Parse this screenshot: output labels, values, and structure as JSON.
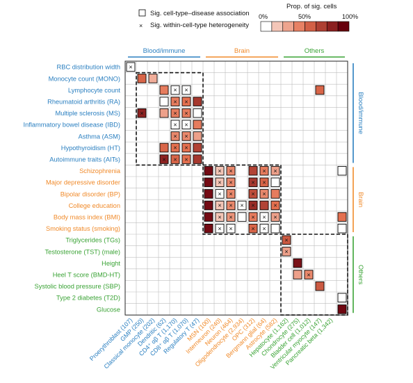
{
  "legend": {
    "assoc_label": "Sig. cell-type–disease association",
    "hetero_label": "Sig. within-cell-type heterogeneity",
    "scale_title": "Prop. of sig. cells",
    "scale_ticks": [
      "0%",
      "50%",
      "100%"
    ]
  },
  "chart_data": {
    "type": "heatmap",
    "title": "",
    "color_scale": {
      "low": "#fbe9e2",
      "mid": "#e4704f",
      "high": "#67000d",
      "range": [
        0,
        1
      ]
    },
    "column_groups": [
      {
        "label": "Blood/immune",
        "color": "#2a7fc0",
        "start": 0,
        "end": 6
      },
      {
        "label": "Brain",
        "color": "#f08a2a",
        "start": 7,
        "end": 13
      },
      {
        "label": "Others",
        "color": "#3aa335",
        "start": 14,
        "end": 19
      }
    ],
    "row_groups": [
      {
        "label": "Blood/immune",
        "color": "#2a7fc0",
        "start": 0,
        "end": 8
      },
      {
        "label": "Brain",
        "color": "#f08a2a",
        "start": 9,
        "end": 14
      },
      {
        "label": "Others",
        "color": "#3aa335",
        "start": 15,
        "end": 21
      }
    ],
    "columns": [
      "Proerythroblast (107)",
      "GMP (250)",
      "Classical monocyte (202)",
      "Dendritic (62)",
      "CD4⁺ αβ T (1,170)",
      "CD8⁺ αβ T (1,070)",
      "Regulatory T (47)",
      "MSN (100)",
      "Interneuron (240)",
      "Neuron (464)",
      "Oligodendrocyte (2,934)",
      "OPC (312)",
      "Bergmann glial (64)",
      "Astrocyte (582)",
      "Hepatocyte (1,162)",
      "Chondrocyte (275)",
      "Bladder cell (1,012)",
      "Ventricular myocyte (147)",
      "Pancreatic beta (1,342)",
      ""
    ],
    "rows": [
      "RBC distribution width",
      "Monocyte count (MONO)",
      "Lymphocyte count",
      "Rheumatoid arthritis (RA)",
      "Multiple sclerosis (MS)",
      "Inflammatory bowel disease (IBD)",
      "Asthma (ASM)",
      "Hypothyroidism (HT)",
      "Autoimmune traits (AITs)",
      "Schizophrenia",
      "Major depressive disorder",
      "Bipolar disorder (BP)",
      "College education",
      "Body mass index (BMI)",
      "Smoking status (smoking)",
      "Triglycerides (TGs)",
      "Testosterone (TST) (male)",
      "Height",
      "Heel T score (BMD-HT)",
      "Systolic blood pressure (SBP)",
      "Type 2 diabetes (T2D)",
      "Glucose"
    ],
    "cells": [
      {
        "r": 0,
        "c": 0,
        "v": 0.0,
        "s": 1,
        "h": 1
      },
      {
        "r": 1,
        "c": 1,
        "v": 0.55,
        "s": 1,
        "h": 0
      },
      {
        "r": 1,
        "c": 2,
        "v": 0.25,
        "s": 1,
        "h": 0
      },
      {
        "r": 2,
        "c": 3,
        "v": 0.45,
        "s": 1,
        "h": 0
      },
      {
        "r": 2,
        "c": 4,
        "v": 0.0,
        "s": 1,
        "h": 1
      },
      {
        "r": 2,
        "c": 5,
        "v": 0.0,
        "s": 1,
        "h": 1
      },
      {
        "r": 2,
        "c": 17,
        "v": 0.55,
        "s": 1,
        "h": 0
      },
      {
        "r": 3,
        "c": 3,
        "v": 0.0,
        "s": 1,
        "h": 0
      },
      {
        "r": 3,
        "c": 4,
        "v": 0.45,
        "s": 1,
        "h": 1
      },
      {
        "r": 3,
        "c": 5,
        "v": 0.5,
        "s": 1,
        "h": 1
      },
      {
        "r": 3,
        "c": 6,
        "v": 0.75,
        "s": 1,
        "h": 0
      },
      {
        "r": 4,
        "c": 1,
        "v": 0.85,
        "s": 1,
        "h": 1
      },
      {
        "r": 4,
        "c": 3,
        "v": 0.3,
        "s": 1,
        "h": 0
      },
      {
        "r": 4,
        "c": 4,
        "v": 0.45,
        "s": 1,
        "h": 1
      },
      {
        "r": 4,
        "c": 5,
        "v": 0.45,
        "s": 1,
        "h": 1
      },
      {
        "r": 4,
        "c": 6,
        "v": 0.0,
        "s": 1,
        "h": 0
      },
      {
        "r": 5,
        "c": 4,
        "v": 0.0,
        "s": 1,
        "h": 1
      },
      {
        "r": 5,
        "c": 5,
        "v": 0.0,
        "s": 1,
        "h": 1
      },
      {
        "r": 5,
        "c": 6,
        "v": 0.45,
        "s": 1,
        "h": 0
      },
      {
        "r": 6,
        "c": 4,
        "v": 0.4,
        "s": 1,
        "h": 1
      },
      {
        "r": 6,
        "c": 5,
        "v": 0.4,
        "s": 1,
        "h": 1
      },
      {
        "r": 6,
        "c": 6,
        "v": 0.3,
        "s": 1,
        "h": 0
      },
      {
        "r": 7,
        "c": 3,
        "v": 0.55,
        "s": 1,
        "h": 0
      },
      {
        "r": 7,
        "c": 4,
        "v": 0.5,
        "s": 1,
        "h": 1
      },
      {
        "r": 7,
        "c": 5,
        "v": 0.5,
        "s": 1,
        "h": 1
      },
      {
        "r": 7,
        "c": 6,
        "v": 0.7,
        "s": 1,
        "h": 0
      },
      {
        "r": 8,
        "c": 3,
        "v": 0.85,
        "s": 1,
        "h": 1
      },
      {
        "r": 8,
        "c": 4,
        "v": 0.55,
        "s": 1,
        "h": 1
      },
      {
        "r": 8,
        "c": 5,
        "v": 0.5,
        "s": 1,
        "h": 1
      },
      {
        "r": 8,
        "c": 6,
        "v": 0.75,
        "s": 1,
        "h": 0
      },
      {
        "r": 9,
        "c": 7,
        "v": 0.95,
        "s": 1,
        "h": 0
      },
      {
        "r": 9,
        "c": 8,
        "v": 0.15,
        "s": 1,
        "h": 1
      },
      {
        "r": 9,
        "c": 9,
        "v": 0.4,
        "s": 1,
        "h": 1
      },
      {
        "r": 9,
        "c": 11,
        "v": 0.7,
        "s": 1,
        "h": 0
      },
      {
        "r": 9,
        "c": 12,
        "v": 0.45,
        "s": 1,
        "h": 1
      },
      {
        "r": 9,
        "c": 13,
        "v": 0.3,
        "s": 1,
        "h": 1
      },
      {
        "r": 9,
        "c": 19,
        "v": 0.0,
        "s": 1,
        "h": 0
      },
      {
        "r": 10,
        "c": 7,
        "v": 0.95,
        "s": 1,
        "h": 0
      },
      {
        "r": 10,
        "c": 8,
        "v": 0.15,
        "s": 1,
        "h": 1
      },
      {
        "r": 10,
        "c": 9,
        "v": 0.4,
        "s": 1,
        "h": 1
      },
      {
        "r": 10,
        "c": 11,
        "v": 0.75,
        "s": 1,
        "h": 1
      },
      {
        "r": 10,
        "c": 12,
        "v": 0.55,
        "s": 1,
        "h": 1
      },
      {
        "r": 10,
        "c": 13,
        "v": 0.0,
        "s": 1,
        "h": 0
      },
      {
        "r": 11,
        "c": 7,
        "v": 0.95,
        "s": 1,
        "h": 0
      },
      {
        "r": 11,
        "c": 8,
        "v": 0.0,
        "s": 1,
        "h": 1
      },
      {
        "r": 11,
        "c": 9,
        "v": 0.4,
        "s": 1,
        "h": 1
      },
      {
        "r": 11,
        "c": 11,
        "v": 0.65,
        "s": 1,
        "h": 1
      },
      {
        "r": 11,
        "c": 12,
        "v": 0.4,
        "s": 1,
        "h": 1
      },
      {
        "r": 11,
        "c": 13,
        "v": 0.45,
        "s": 1,
        "h": 0
      },
      {
        "r": 12,
        "c": 7,
        "v": 0.95,
        "s": 1,
        "h": 0
      },
      {
        "r": 12,
        "c": 8,
        "v": 0.15,
        "s": 1,
        "h": 1
      },
      {
        "r": 12,
        "c": 9,
        "v": 0.4,
        "s": 1,
        "h": 1
      },
      {
        "r": 12,
        "c": 10,
        "v": 0.0,
        "s": 1,
        "h": 1
      },
      {
        "r": 12,
        "c": 11,
        "v": 0.8,
        "s": 1,
        "h": 1
      },
      {
        "r": 12,
        "c": 12,
        "v": 0.7,
        "s": 1,
        "h": 0
      },
      {
        "r": 12,
        "c": 13,
        "v": 0.5,
        "s": 1,
        "h": 1
      },
      {
        "r": 13,
        "c": 7,
        "v": 0.95,
        "s": 1,
        "h": 0
      },
      {
        "r": 13,
        "c": 8,
        "v": 0.15,
        "s": 1,
        "h": 1
      },
      {
        "r": 13,
        "c": 9,
        "v": 0.35,
        "s": 1,
        "h": 1
      },
      {
        "r": 13,
        "c": 10,
        "v": 0.0,
        "s": 1,
        "h": 0
      },
      {
        "r": 13,
        "c": 11,
        "v": 0.45,
        "s": 1,
        "h": 1
      },
      {
        "r": 13,
        "c": 12,
        "v": 0.0,
        "s": 1,
        "h": 1
      },
      {
        "r": 13,
        "c": 13,
        "v": 0.3,
        "s": 1,
        "h": 1
      },
      {
        "r": 13,
        "c": 19,
        "v": 0.5,
        "s": 1,
        "h": 0
      },
      {
        "r": 14,
        "c": 7,
        "v": 0.95,
        "s": 1,
        "h": 0
      },
      {
        "r": 14,
        "c": 8,
        "v": 0.0,
        "s": 1,
        "h": 1
      },
      {
        "r": 14,
        "c": 9,
        "v": 0.0,
        "s": 1,
        "h": 1
      },
      {
        "r": 14,
        "c": 11,
        "v": 0.55,
        "s": 1,
        "h": 1
      },
      {
        "r": 14,
        "c": 12,
        "v": 0.0,
        "s": 1,
        "h": 1
      },
      {
        "r": 14,
        "c": 13,
        "v": 0.0,
        "s": 1,
        "h": 0
      },
      {
        "r": 14,
        "c": 19,
        "v": 0.0,
        "s": 1,
        "h": 0
      },
      {
        "r": 15,
        "c": 14,
        "v": 0.6,
        "s": 1,
        "h": 1
      },
      {
        "r": 16,
        "c": 14,
        "v": 0.3,
        "s": 1,
        "h": 1
      },
      {
        "r": 17,
        "c": 15,
        "v": 0.92,
        "s": 1,
        "h": 0
      },
      {
        "r": 18,
        "c": 15,
        "v": 0.3,
        "s": 1,
        "h": 0
      },
      {
        "r": 18,
        "c": 16,
        "v": 0.4,
        "s": 1,
        "h": 1
      },
      {
        "r": 19,
        "c": 17,
        "v": 0.6,
        "s": 1,
        "h": 0
      },
      {
        "r": 20,
        "c": 19,
        "v": 0.0,
        "s": 1,
        "h": 0
      },
      {
        "r": 21,
        "c": 19,
        "v": 0.97,
        "s": 1,
        "h": 0
      }
    ],
    "highlight_blocks": [
      {
        "row_start": 1,
        "row_end": 8,
        "col_start": 1,
        "col_end": 6
      },
      {
        "row_start": 9,
        "row_end": 14,
        "col_start": 7,
        "col_end": 13
      },
      {
        "row_start": 15,
        "row_end": 21,
        "col_start": 14,
        "col_end": 19
      }
    ]
  }
}
